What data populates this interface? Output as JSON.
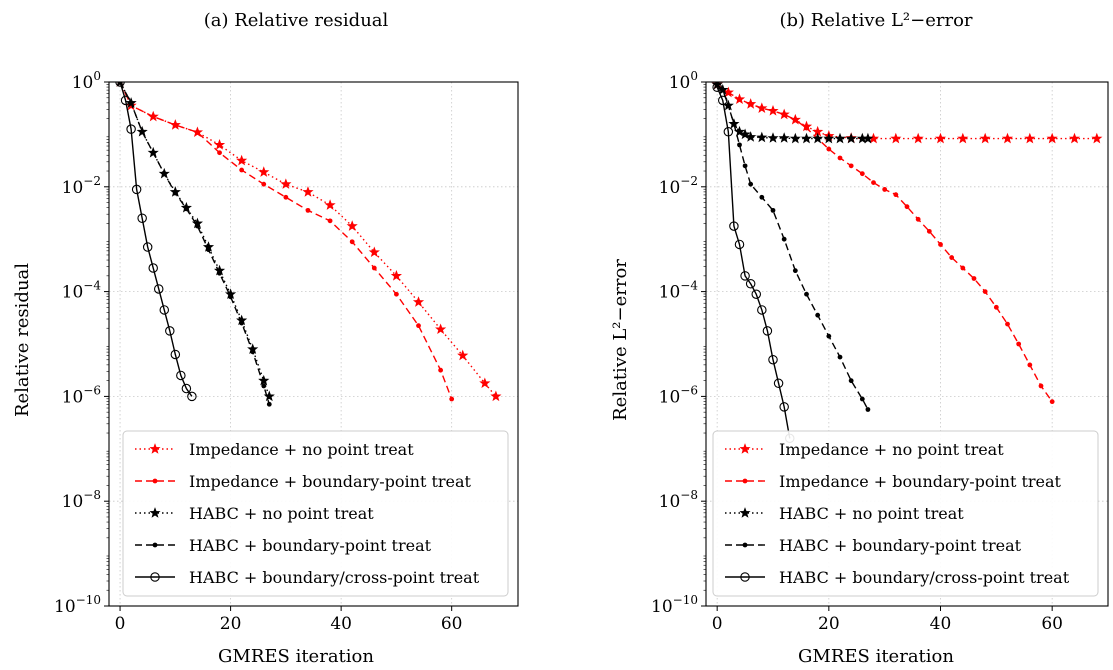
{
  "chart_data": [
    {
      "type": "line",
      "title": "(a) Relative residual",
      "xlabel": "GMRES iteration",
      "ylabel": "Relative residual",
      "xlim": [
        -2,
        72
      ],
      "ylim_exp": [
        -10,
        0
      ],
      "yscale": "log",
      "grid": true,
      "legend_position": "lower-right",
      "xticks": [
        0,
        20,
        40,
        60
      ],
      "ytick_exponents": [
        0,
        -2,
        -4,
        -6,
        -8,
        -10
      ],
      "series": [
        {
          "name": "Impedance + no point treat",
          "color": "#ff0000",
          "dash": "dotted",
          "marker": "star",
          "x": [
            0,
            2,
            6,
            10,
            14,
            18,
            22,
            26,
            30,
            34,
            38,
            42,
            46,
            50,
            54,
            58,
            62,
            66,
            68
          ],
          "log10_y": [
            0,
            -0.45,
            -0.66,
            -0.82,
            -0.96,
            -1.2,
            -1.5,
            -1.72,
            -1.95,
            -2.1,
            -2.35,
            -2.75,
            -3.25,
            -3.7,
            -4.2,
            -4.72,
            -5.22,
            -5.75,
            -6.0
          ]
        },
        {
          "name": "Impedance + boundary-point treat",
          "color": "#ff0000",
          "dash": "dashed",
          "marker": "dot",
          "x": [
            0,
            2,
            6,
            10,
            14,
            18,
            22,
            26,
            30,
            34,
            38,
            42,
            46,
            50,
            54,
            58,
            60
          ],
          "log10_y": [
            0,
            -0.45,
            -0.66,
            -0.82,
            -0.96,
            -1.35,
            -1.68,
            -1.95,
            -2.2,
            -2.45,
            -2.65,
            -3.05,
            -3.55,
            -4.05,
            -4.65,
            -5.5,
            -6.05
          ]
        },
        {
          "name": "HABC + no point treat",
          "color": "#000000",
          "dash": "dotted",
          "marker": "star",
          "x": [
            0,
            2,
            4,
            6,
            8,
            10,
            12,
            14,
            16,
            18,
            20,
            22,
            24,
            26,
            27
          ],
          "log10_y": [
            0,
            -0.4,
            -0.95,
            -1.35,
            -1.75,
            -2.1,
            -2.4,
            -2.7,
            -3.15,
            -3.6,
            -4.05,
            -4.55,
            -5.1,
            -5.7,
            -6.0
          ]
        },
        {
          "name": "HABC + boundary-point treat",
          "color": "#000000",
          "dash": "dashed",
          "marker": "dot",
          "x": [
            0,
            2,
            4,
            6,
            8,
            10,
            12,
            14,
            16,
            18,
            20,
            22,
            24,
            26,
            27
          ],
          "log10_y": [
            0,
            -0.4,
            -0.95,
            -1.35,
            -1.75,
            -2.12,
            -2.42,
            -2.75,
            -3.2,
            -3.65,
            -4.1,
            -4.6,
            -5.15,
            -5.8,
            -6.15
          ]
        },
        {
          "name": "HABC + boundary/cross-point treat",
          "color": "#000000",
          "dash": "solid",
          "marker": "circle",
          "x": [
            0,
            1,
            2,
            3,
            4,
            5,
            6,
            7,
            8,
            9,
            10,
            11,
            12,
            13
          ],
          "log10_y": [
            0,
            -0.35,
            -0.9,
            -2.05,
            -2.6,
            -3.15,
            -3.55,
            -3.95,
            -4.35,
            -4.75,
            -5.2,
            -5.6,
            -5.85,
            -6.0
          ]
        }
      ]
    },
    {
      "type": "line",
      "title": "(b) Relative L²−error",
      "xlabel": "GMRES iteration",
      "ylabel": "Relative L²−error",
      "xlim": [
        -2,
        70
      ],
      "ylim_exp": [
        -10,
        0
      ],
      "yscale": "log",
      "grid": true,
      "legend_position": "lower-right",
      "xticks": [
        0,
        20,
        40,
        60
      ],
      "ytick_exponents": [
        0,
        -2,
        -4,
        -6,
        -8,
        -10
      ],
      "series": [
        {
          "name": "Impedance + no point treat",
          "color": "#ff0000",
          "dash": "dotted",
          "marker": "star",
          "x": [
            0,
            2,
            4,
            6,
            8,
            10,
            12,
            14,
            16,
            18,
            20,
            24,
            28,
            32,
            36,
            40,
            44,
            48,
            52,
            56,
            60,
            64,
            68
          ],
          "log10_y": [
            -0.05,
            -0.2,
            -0.33,
            -0.42,
            -0.5,
            -0.55,
            -0.62,
            -0.72,
            -0.85,
            -0.95,
            -1.03,
            -1.07,
            -1.08,
            -1.08,
            -1.08,
            -1.08,
            -1.08,
            -1.08,
            -1.08,
            -1.08,
            -1.08,
            -1.08,
            -1.08
          ]
        },
        {
          "name": "Impedance + boundary-point treat",
          "color": "#ff0000",
          "dash": "dashed",
          "marker": "dot",
          "x": [
            0,
            2,
            4,
            6,
            8,
            10,
            12,
            14,
            16,
            18,
            20,
            22,
            24,
            26,
            28,
            30,
            32,
            34,
            36,
            38,
            40,
            42,
            44,
            46,
            48,
            50,
            52,
            54,
            56,
            58,
            60
          ],
          "log10_y": [
            -0.05,
            -0.2,
            -0.33,
            -0.42,
            -0.5,
            -0.55,
            -0.62,
            -0.72,
            -0.88,
            -1.08,
            -1.28,
            -1.45,
            -1.6,
            -1.75,
            -1.92,
            -2.05,
            -2.15,
            -2.38,
            -2.62,
            -2.85,
            -3.1,
            -3.35,
            -3.55,
            -3.75,
            -4.0,
            -4.3,
            -4.62,
            -5.0,
            -5.4,
            -5.8,
            -6.1
          ]
        },
        {
          "name": "HABC + no point treat",
          "color": "#000000",
          "dash": "dotted",
          "marker": "star",
          "x": [
            0,
            1,
            2,
            3,
            4,
            5,
            6,
            8,
            10,
            12,
            14,
            16,
            18,
            20,
            22,
            24,
            26,
            27
          ],
          "log10_y": [
            -0.05,
            -0.15,
            -0.45,
            -0.8,
            -0.95,
            -1.0,
            -1.05,
            -1.06,
            -1.07,
            -1.07,
            -1.08,
            -1.08,
            -1.08,
            -1.08,
            -1.08,
            -1.08,
            -1.08,
            -1.08
          ]
        },
        {
          "name": "HABC + boundary-point treat",
          "color": "#000000",
          "dash": "dashed",
          "marker": "dot",
          "x": [
            0,
            1,
            2,
            3,
            4,
            5,
            6,
            8,
            10,
            12,
            14,
            16,
            18,
            20,
            22,
            24,
            26,
            27
          ],
          "log10_y": [
            -0.05,
            -0.15,
            -0.45,
            -0.8,
            -1.2,
            -1.6,
            -1.95,
            -2.2,
            -2.45,
            -3.0,
            -3.6,
            -4.05,
            -4.45,
            -4.85,
            -5.25,
            -5.7,
            -6.05,
            -6.25
          ]
        },
        {
          "name": "HABC + boundary/cross-point treat",
          "color": "#000000",
          "dash": "solid",
          "marker": "circle",
          "x": [
            0,
            1,
            2,
            3,
            4,
            5,
            6,
            7,
            8,
            9,
            10,
            11,
            12,
            13
          ],
          "log10_y": [
            -0.1,
            -0.35,
            -0.95,
            -2.75,
            -3.1,
            -3.7,
            -3.85,
            -4.05,
            -4.35,
            -4.75,
            -5.3,
            -5.75,
            -6.2,
            -6.8
          ]
        }
      ]
    }
  ]
}
